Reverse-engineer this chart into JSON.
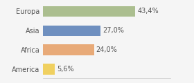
{
  "categories": [
    "Europa",
    "Asia",
    "Africa",
    "America"
  ],
  "values": [
    43.4,
    27.0,
    24.0,
    5.6
  ],
  "labels": [
    "43,4%",
    "27,0%",
    "24,0%",
    "5,6%"
  ],
  "colors": [
    "#abbe8f",
    "#6e8fbf",
    "#e8aa78",
    "#f0d060"
  ],
  "background_color": "#f5f5f5",
  "xlim": [
    0,
    60
  ],
  "bar_height": 0.55,
  "label_fontsize": 7,
  "tick_fontsize": 7
}
